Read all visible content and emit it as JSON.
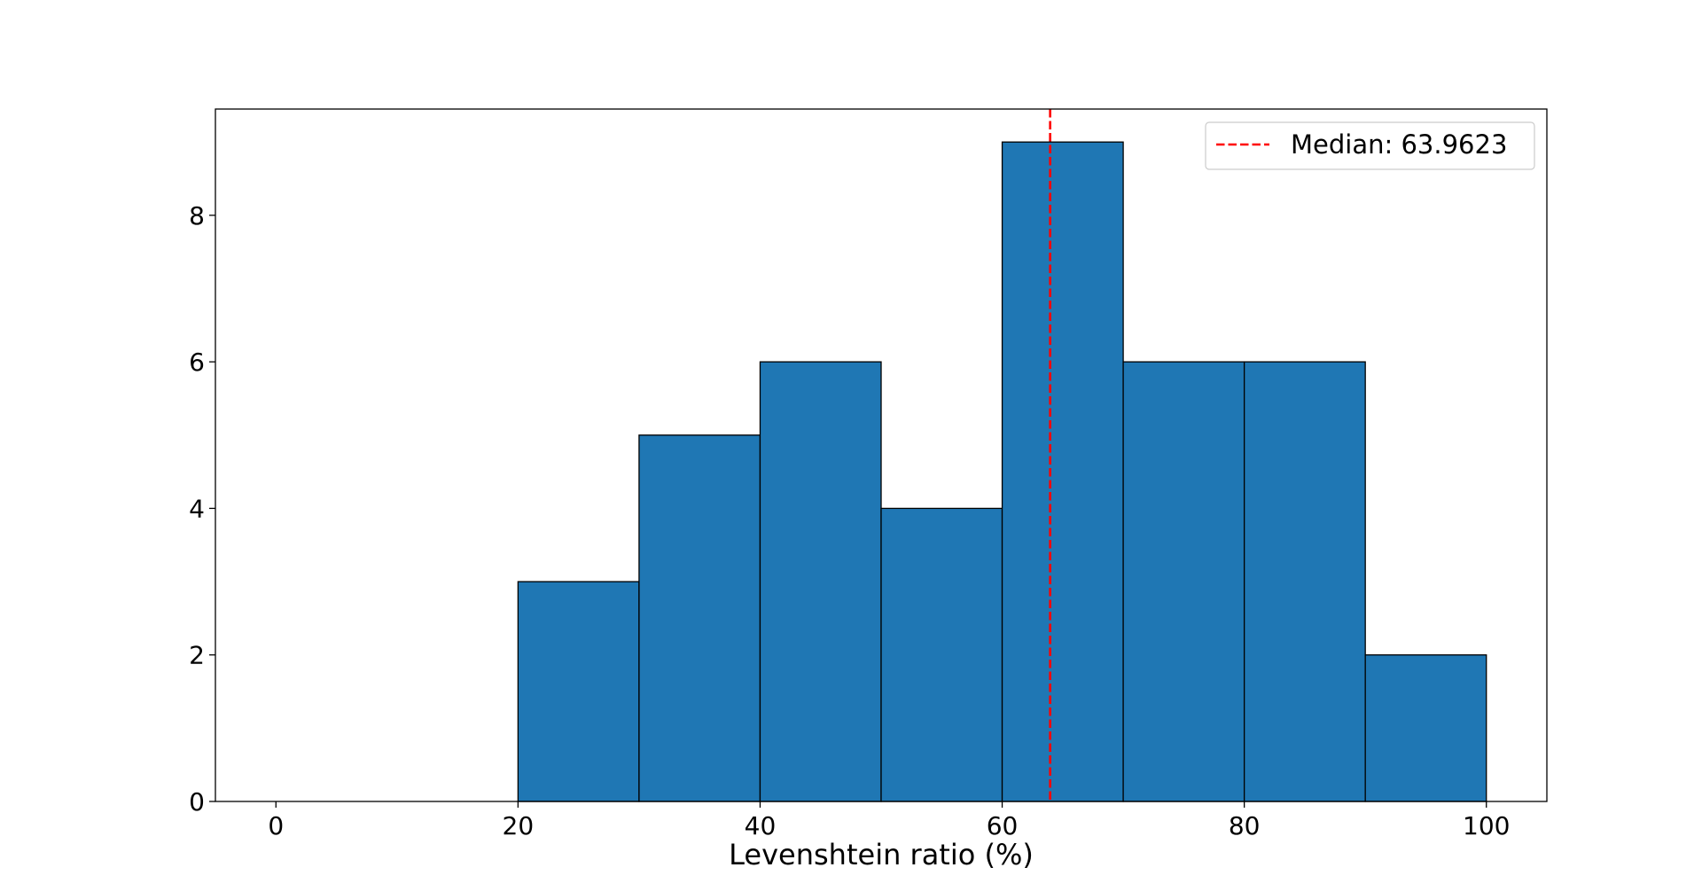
{
  "chart_data": {
    "type": "bar",
    "histogram": true,
    "bin_edges": [
      20,
      30,
      40,
      50,
      60,
      70,
      80,
      90,
      100
    ],
    "values": [
      3,
      5,
      6,
      4,
      9,
      6,
      6,
      2
    ],
    "xlabel": "Levenshtein ratio (%)",
    "ylabel": "",
    "xlim": [
      -5,
      105
    ],
    "ylim": [
      0,
      9.45
    ],
    "xticks": [
      0,
      20,
      40,
      60,
      80,
      100
    ],
    "yticks": [
      0,
      2,
      4,
      6,
      8
    ],
    "grid": false,
    "bar_color": "#1f77b4",
    "edge_color": "#000000",
    "median": {
      "value": 63.9623,
      "label": "Median: 63.9623",
      "color": "#ff0000",
      "style": "dashed"
    },
    "legend": {
      "placement": "top-right",
      "entries": [
        "Median: 63.9623"
      ]
    }
  }
}
